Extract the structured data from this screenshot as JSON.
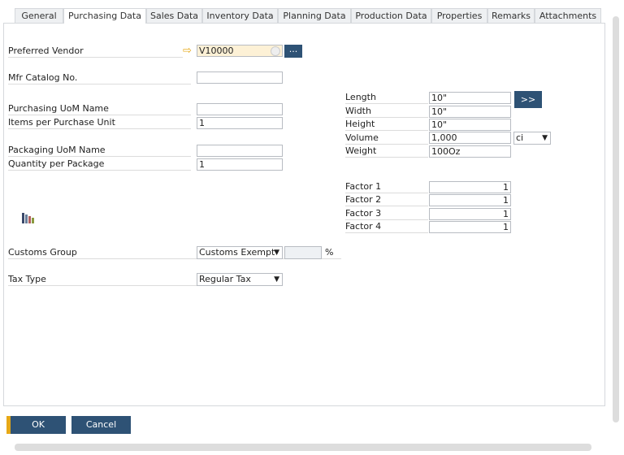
{
  "tabs": [
    "General",
    "Purchasing Data",
    "Sales Data",
    "Inventory Data",
    "Planning Data",
    "Production Data",
    "Properties",
    "Remarks",
    "Attachments"
  ],
  "active_tab": "Purchasing Data",
  "left": {
    "preferred_vendor": {
      "label": "Preferred Vendor",
      "value": "V10000"
    },
    "mfr_catalog": {
      "label": "Mfr Catalog No.",
      "value": ""
    },
    "purchasing_uom": {
      "label": "Purchasing UoM Name",
      "value": ""
    },
    "items_per_unit": {
      "label": "Items per Purchase Unit",
      "value": "1"
    },
    "packaging_uom": {
      "label": "Packaging UoM Name",
      "value": ""
    },
    "qty_per_package": {
      "label": "Quantity per Package",
      "value": "1"
    },
    "customs_group": {
      "label": "Customs Group",
      "value": "Customs Exempt",
      "percent": "",
      "percent_sign": "%"
    },
    "tax_type": {
      "label": "Tax Type",
      "value": "Regular Tax"
    }
  },
  "dimensions": {
    "length": {
      "label": "Length",
      "value": "10\""
    },
    "width": {
      "label": "Width",
      "value": "10\""
    },
    "height": {
      "label": "Height",
      "value": "10\""
    },
    "volume": {
      "label": "Volume",
      "value": "1,000",
      "unit": "ci"
    },
    "weight": {
      "label": "Weight",
      "value": "100Oz"
    },
    "expand_label": ">>"
  },
  "factors": [
    {
      "label": "Factor 1",
      "value": "1"
    },
    {
      "label": "Factor 2",
      "value": "1"
    },
    {
      "label": "Factor 3",
      "value": "1"
    },
    {
      "label": "Factor 4",
      "value": "1"
    }
  ],
  "browse_label": "...",
  "buttons": {
    "ok": "OK",
    "cancel": "Cancel"
  },
  "colors": {
    "button": "#2e5275",
    "accent": "#e6a817",
    "vendor_field": "#fdf1d6"
  }
}
